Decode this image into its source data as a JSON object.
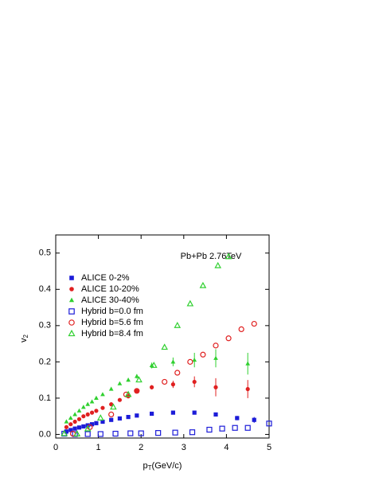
{
  "chart_data": {
    "type": "scatter",
    "annotation": "Pb+Pb 2.76TeV",
    "x_label": {
      "base": "p",
      "subscript": "T",
      "rest": "(GeV/c)"
    },
    "y_label": {
      "base": "v",
      "subscript": "2"
    },
    "xlim": [
      0,
      5
    ],
    "ylim": [
      -0.01,
      0.55
    ],
    "xticks": [
      0,
      1,
      2,
      3,
      4,
      5
    ],
    "yticks": [
      {
        "value": 0,
        "label": "0.0"
      },
      0.1,
      0.2,
      0.3,
      0.4,
      0.5
    ],
    "legend": "top-left",
    "series": [
      {
        "name": "ALICE 0-2%",
        "color": "#1c1cd8",
        "marker": "square",
        "filled": true,
        "x": [
          0.25,
          0.35,
          0.45,
          0.55,
          0.65,
          0.75,
          0.85,
          0.95,
          1.1,
          1.3,
          1.5,
          1.7,
          1.9,
          2.25,
          2.75,
          3.25,
          3.75,
          4.25,
          4.65
        ],
        "values": [
          0.008,
          0.012,
          0.016,
          0.019,
          0.022,
          0.025,
          0.028,
          0.031,
          0.035,
          0.04,
          0.044,
          0.048,
          0.052,
          0.057,
          0.06,
          0.06,
          0.055,
          0.045,
          0.04
        ],
        "errors": [
          0.001,
          0.001,
          0.001,
          0.001,
          0.001,
          0.001,
          0.001,
          0.001,
          0.001,
          0.001,
          0.001,
          0.001,
          0.002,
          0.002,
          0.002,
          0.003,
          0.004,
          0.006,
          0.008
        ]
      },
      {
        "name": "ALICE 10-20%",
        "color": "#e02020",
        "marker": "circle",
        "filled": true,
        "x": [
          0.25,
          0.35,
          0.45,
          0.55,
          0.65,
          0.75,
          0.85,
          0.95,
          1.1,
          1.3,
          1.5,
          1.7,
          1.9,
          2.25,
          2.75,
          3.25,
          3.75,
          4.5
        ],
        "values": [
          0.02,
          0.028,
          0.035,
          0.042,
          0.05,
          0.055,
          0.06,
          0.065,
          0.073,
          0.083,
          0.095,
          0.105,
          0.12,
          0.13,
          0.138,
          0.145,
          0.13,
          0.125
        ],
        "errors": [
          0.001,
          0.001,
          0.001,
          0.001,
          0.001,
          0.001,
          0.001,
          0.001,
          0.002,
          0.002,
          0.002,
          0.003,
          0.004,
          0.006,
          0.01,
          0.015,
          0.025,
          0.025
        ]
      },
      {
        "name": "ALICE 30-40%",
        "color": "#30d030",
        "marker": "triangle",
        "filled": true,
        "x": [
          0.25,
          0.35,
          0.45,
          0.55,
          0.65,
          0.75,
          0.85,
          0.95,
          1.1,
          1.3,
          1.5,
          1.7,
          1.9,
          2.25,
          2.75,
          3.25,
          3.75,
          4.5
        ],
        "values": [
          0.035,
          0.045,
          0.055,
          0.065,
          0.075,
          0.083,
          0.09,
          0.1,
          0.11,
          0.125,
          0.14,
          0.15,
          0.16,
          0.19,
          0.2,
          0.205,
          0.21,
          0.195
        ],
        "errors": [
          0.001,
          0.001,
          0.001,
          0.001,
          0.001,
          0.001,
          0.001,
          0.002,
          0.002,
          0.003,
          0.004,
          0.005,
          0.006,
          0.008,
          0.012,
          0.02,
          0.025,
          0.03
        ]
      },
      {
        "name": "Hybrid b=0.0 fm",
        "color": "#1c1cd8",
        "marker": "square",
        "filled": false,
        "x": [
          0.2,
          0.45,
          0.75,
          1.05,
          1.4,
          1.75,
          2.0,
          2.4,
          2.8,
          3.2,
          3.6,
          3.9,
          4.2,
          4.5,
          5.0
        ],
        "values": [
          0.002,
          0.001,
          0.001,
          0.001,
          0.002,
          0.003,
          0.003,
          0.004,
          0.005,
          0.006,
          0.013,
          0.016,
          0.018,
          0.018,
          0.03
        ]
      },
      {
        "name": "Hybrid b=5.6 fm",
        "color": "#e02020",
        "marker": "circle",
        "filled": false,
        "x": [
          0.4,
          0.8,
          1.3,
          1.65,
          1.9,
          2.55,
          2.85,
          3.15,
          3.45,
          3.75,
          4.05,
          4.35,
          4.65
        ],
        "values": [
          0.002,
          0.02,
          0.055,
          0.11,
          0.12,
          0.145,
          0.17,
          0.2,
          0.22,
          0.245,
          0.265,
          0.29,
          0.305
        ]
      },
      {
        "name": "Hybrid b=8.4 fm",
        "color": "#30d030",
        "marker": "triangle",
        "filled": false,
        "x": [
          0.2,
          0.5,
          0.75,
          1.05,
          1.35,
          1.7,
          1.95,
          2.3,
          2.55,
          2.85,
          3.15,
          3.45,
          3.8,
          4.05
        ],
        "values": [
          0.002,
          0.001,
          0.015,
          0.045,
          0.075,
          0.11,
          0.15,
          0.19,
          0.24,
          0.3,
          0.36,
          0.41,
          0.465,
          0.49
        ]
      }
    ]
  }
}
